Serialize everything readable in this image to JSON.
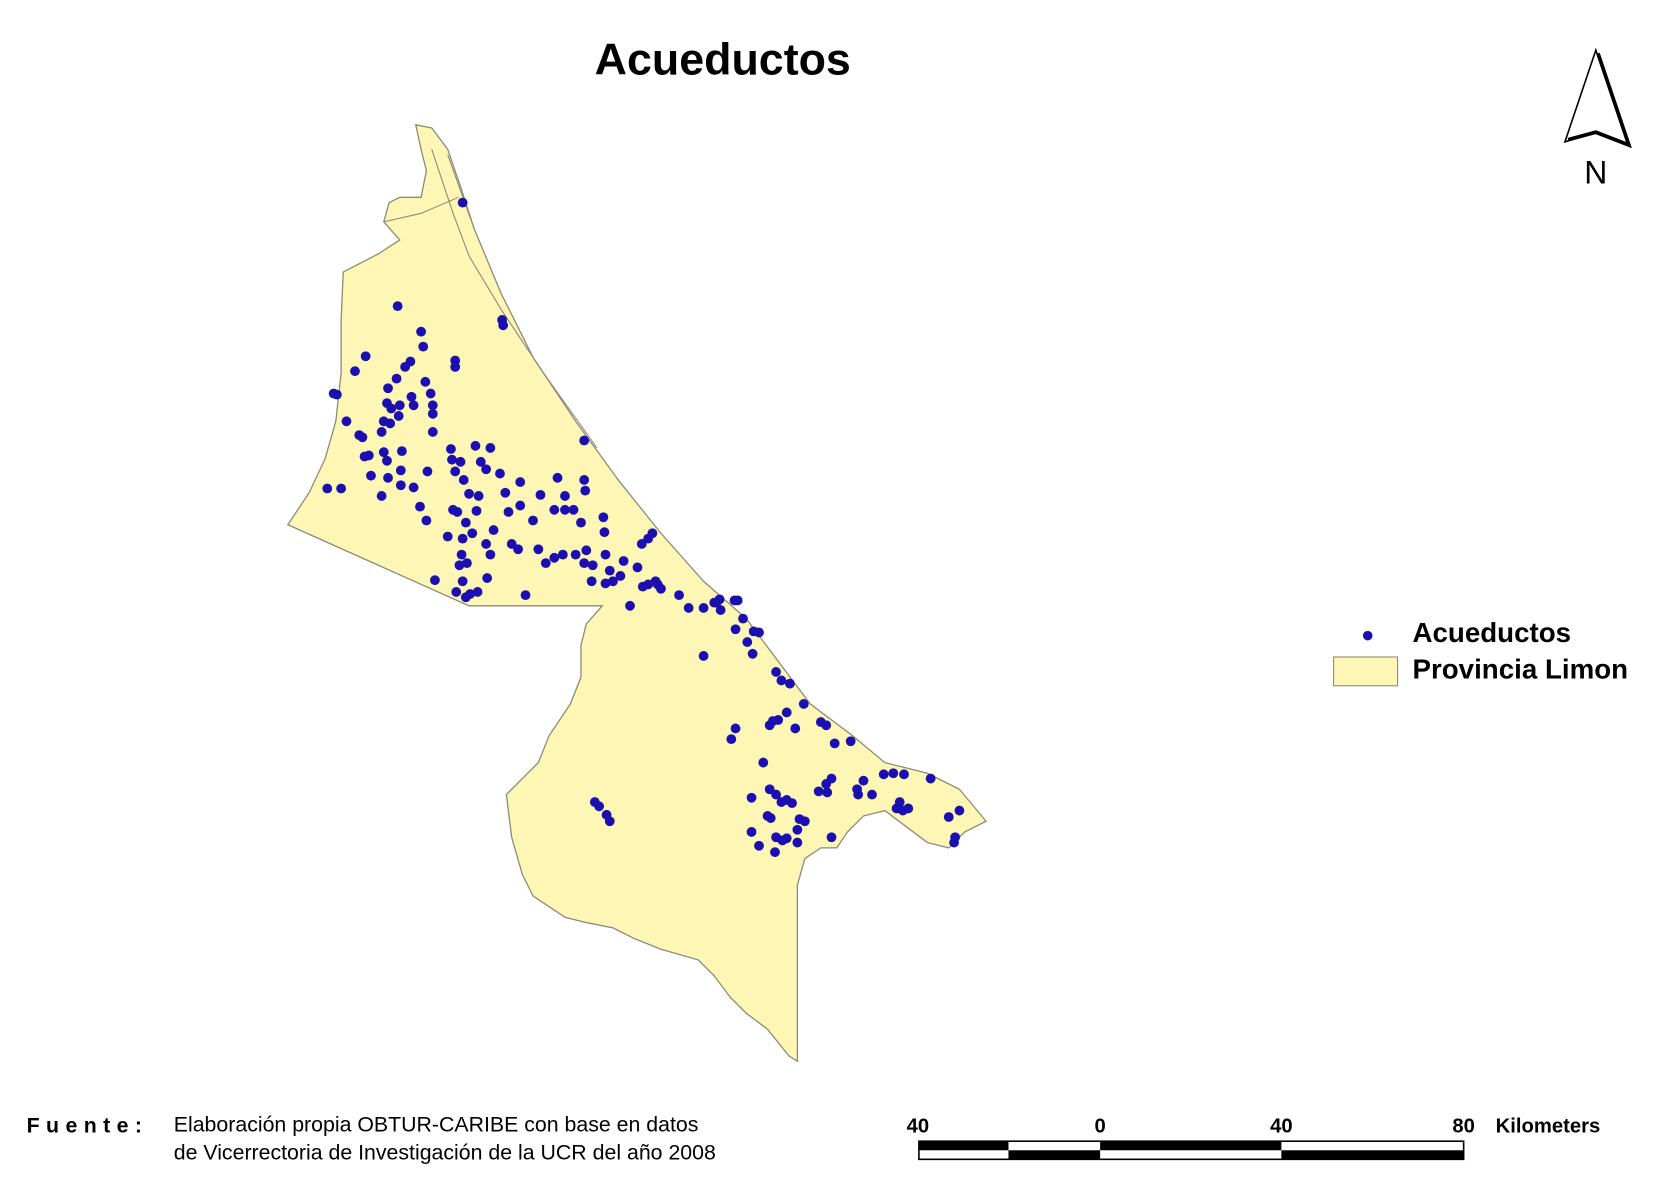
{
  "title": "Acueductos",
  "north_arrow": {
    "label": "N"
  },
  "legend": {
    "items": [
      {
        "label": "Acueductos",
        "symbol": "point",
        "color": "#1c0fb0"
      },
      {
        "label": "Provincia Limon",
        "symbol": "polygon",
        "color": "#fdf6b4"
      }
    ]
  },
  "source": {
    "label": "Fuente:",
    "lines": [
      "Elaboración propia OBTUR-CARIBE  con base en datos",
      "de Vicerrectoria de Investigación de la UCR del año 2008"
    ]
  },
  "scale_bar": {
    "ticks": [
      "40",
      "0",
      "40",
      "80"
    ],
    "unit": "Kilometers"
  },
  "colors": {
    "province_fill": "#fdf6b4",
    "province_outline": "#8a8a7a",
    "point": "#1c0fb0"
  }
}
